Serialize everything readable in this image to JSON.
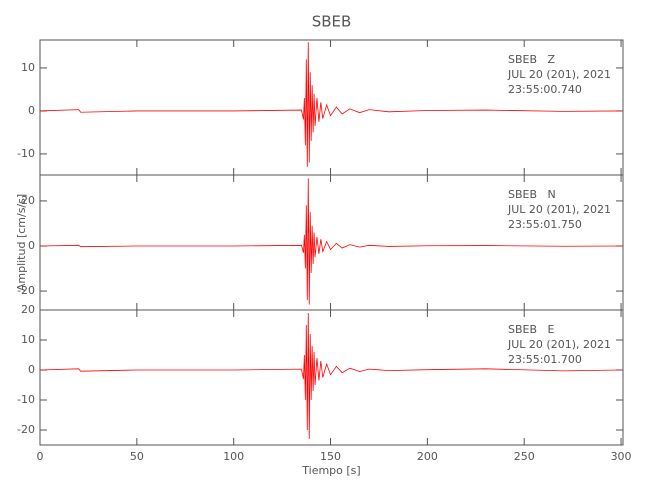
{
  "chart_data": [
    {
      "type": "line",
      "title": "SBEB",
      "color": "#ff0000",
      "annotations": [
        "SBEB   Z",
        "JUL 20 (201), 2021",
        "23:55:00.740"
      ],
      "xlim": [
        0,
        301
      ],
      "xticks": [
        0,
        50,
        100,
        150,
        200,
        250,
        300
      ],
      "ylim": [
        -14.9,
        16.5
      ],
      "yticks": [
        -10,
        0,
        10
      ],
      "x": [
        0,
        20,
        21,
        50,
        100,
        135,
        136,
        136.5,
        137,
        137.5,
        138,
        138.5,
        139,
        139.5,
        140,
        140.5,
        141,
        141.5,
        142,
        143,
        144,
        145,
        146,
        148,
        150,
        153,
        156,
        160,
        165,
        170,
        180,
        200,
        230,
        270,
        300
      ],
      "values": [
        0,
        0.3,
        -0.3,
        0,
        0,
        0.2,
        -2,
        3,
        -8,
        12,
        -13,
        16,
        -12,
        9,
        -7,
        6,
        -5,
        4,
        -3.5,
        3,
        -2.5,
        2,
        -1.8,
        1.4,
        -1.1,
        0.9,
        -0.7,
        0.5,
        -0.4,
        0.3,
        -0.2,
        0.1,
        0.2,
        -0.1,
        0
      ]
    },
    {
      "type": "line",
      "ylabel": "Amplitud [cm/s/s]",
      "color": "#ff0000",
      "annotations": [
        "SBEB   N",
        "JUL 20 (201), 2021",
        "23:55:01.750"
      ],
      "xlim": [
        0,
        301
      ],
      "xticks": [
        0,
        50,
        100,
        150,
        200,
        250,
        300
      ],
      "ylim": [
        -28.4,
        31.5
      ],
      "yticks": [
        -20,
        0,
        20
      ],
      "x": [
        0,
        20,
        21,
        50,
        100,
        135,
        136,
        136.5,
        137,
        137.5,
        138,
        138.5,
        139,
        139.5,
        140,
        140.5,
        141,
        141.5,
        142,
        143,
        144,
        145,
        146,
        148,
        150,
        153,
        156,
        160,
        165,
        170,
        180,
        200,
        230,
        270,
        300
      ],
      "values": [
        0,
        0.3,
        -0.3,
        0,
        0,
        0.3,
        -3,
        5,
        -10,
        18,
        -24,
        30,
        -26,
        15,
        -12,
        9,
        -8,
        6,
        -5,
        4,
        -3.5,
        3,
        -2.5,
        2,
        -1.6,
        1.2,
        -0.9,
        0.6,
        -0.5,
        0.3,
        -0.2,
        0.1,
        0.2,
        -0.1,
        0
      ]
    },
    {
      "type": "line",
      "xlabel": "Tiempo [s]",
      "color": "#ff0000",
      "annotations": [
        "SBEB   E",
        "JUL 20 (201), 2021",
        "23:55:01.700"
      ],
      "xlim": [
        0,
        301
      ],
      "xticks": [
        0,
        50,
        100,
        150,
        200,
        250,
        300
      ],
      "ylim": [
        -25,
        20
      ],
      "yticks": [
        -20,
        -10,
        0,
        10,
        20
      ],
      "x": [
        0,
        20,
        21,
        50,
        100,
        135,
        136,
        136.5,
        137,
        137.5,
        138,
        138.5,
        139,
        139.5,
        140,
        140.5,
        141,
        141.5,
        142,
        143,
        144,
        145,
        146,
        148,
        150,
        153,
        156,
        160,
        165,
        170,
        180,
        200,
        230,
        270,
        300
      ],
      "values": [
        0,
        0.4,
        -0.4,
        0,
        0,
        0.3,
        -3,
        5,
        -10,
        15,
        -20,
        19,
        -23,
        12,
        -10,
        8,
        -7,
        6,
        -5,
        4,
        -3.5,
        3,
        -2.5,
        2,
        -1.6,
        1.2,
        -0.9,
        0.6,
        -0.5,
        0.3,
        -0.2,
        0.1,
        0.4,
        -0.3,
        0
      ]
    }
  ]
}
